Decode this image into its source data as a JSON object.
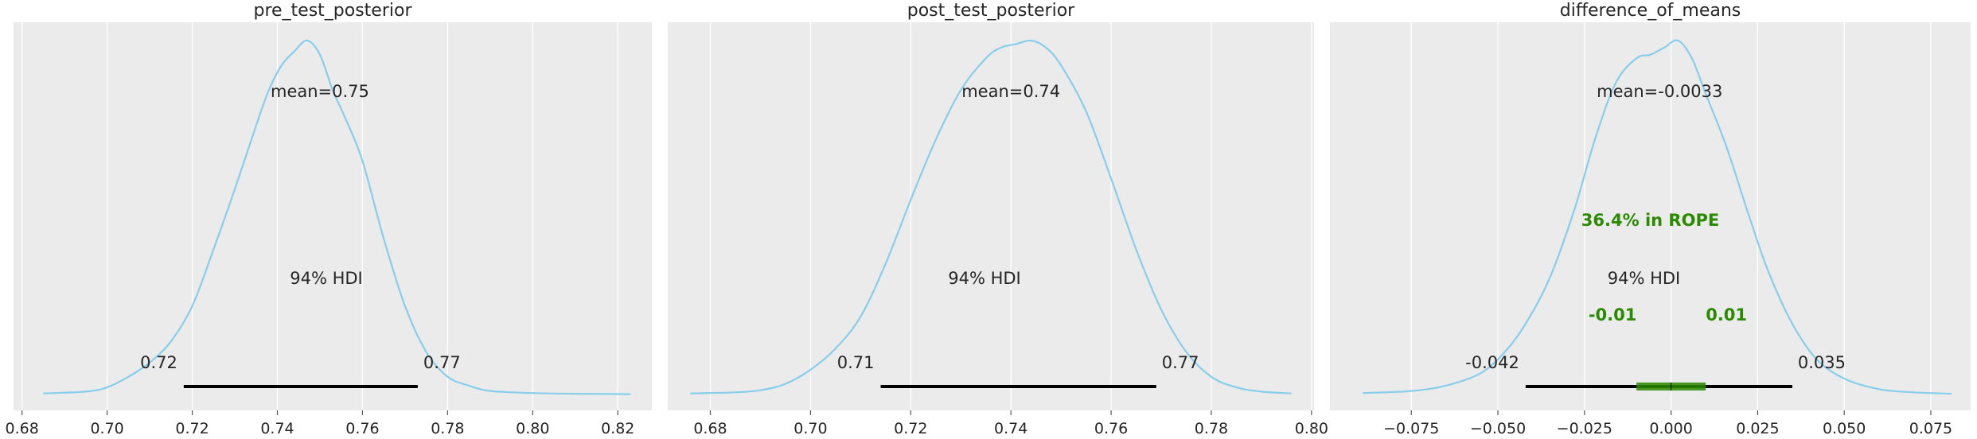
{
  "colors": {
    "background": "#ffffff",
    "panel": "#ebebeb",
    "grid": "#ffffff",
    "kde": "#87ceeb",
    "hdi": "#000000",
    "rope": "#2a8a00",
    "rope_text": "#2a8a00"
  },
  "chart_data": [
    {
      "type": "area",
      "title": "pre_test_posterior",
      "xlim": [
        0.678,
        0.828
      ],
      "ticks": [
        0.68,
        0.7,
        0.72,
        0.74,
        0.76,
        0.78,
        0.8,
        0.82
      ],
      "tick_labels": [
        "0.68",
        "0.70",
        "0.72",
        "0.74",
        "0.76",
        "0.78",
        "0.80",
        "0.82"
      ],
      "kde": {
        "x": [
          0.685,
          0.695,
          0.7,
          0.705,
          0.71,
          0.715,
          0.72,
          0.725,
          0.73,
          0.735,
          0.738,
          0.741,
          0.744,
          0.747,
          0.75,
          0.753,
          0.756,
          0.76,
          0.765,
          0.77,
          0.775,
          0.78,
          0.785,
          0.79,
          0.8,
          0.81,
          0.823
        ],
        "density": [
          0.003,
          0.008,
          0.02,
          0.05,
          0.09,
          0.15,
          0.25,
          0.41,
          0.58,
          0.76,
          0.86,
          0.93,
          0.97,
          1.0,
          0.96,
          0.86,
          0.78,
          0.66,
          0.44,
          0.25,
          0.12,
          0.05,
          0.025,
          0.01,
          0.004,
          0.002,
          0.001
        ]
      },
      "mean_label": "mean=0.75",
      "mean": 0.75,
      "hdi_label": "94% HDI",
      "hdi": [
        0.718,
        0.773
      ],
      "hdi_low_label": "0.72",
      "hdi_high_label": "0.77"
    },
    {
      "type": "area",
      "title": "post_test_posterior",
      "xlim": [
        0.6715,
        0.8005
      ],
      "ticks": [
        0.68,
        0.7,
        0.72,
        0.74,
        0.76,
        0.78,
        0.8
      ],
      "tick_labels": [
        "0.68",
        "0.70",
        "0.72",
        "0.74",
        "0.76",
        "0.78",
        "0.80"
      ],
      "kde": {
        "x": [
          0.676,
          0.685,
          0.69,
          0.695,
          0.7,
          0.705,
          0.71,
          0.715,
          0.72,
          0.725,
          0.73,
          0.735,
          0.738,
          0.741,
          0.744,
          0.747,
          0.75,
          0.755,
          0.76,
          0.765,
          0.77,
          0.775,
          0.78,
          0.785,
          0.79,
          0.796
        ],
        "density": [
          0.003,
          0.006,
          0.012,
          0.03,
          0.07,
          0.13,
          0.22,
          0.37,
          0.55,
          0.72,
          0.86,
          0.95,
          0.98,
          0.99,
          1.0,
          0.98,
          0.93,
          0.8,
          0.61,
          0.41,
          0.24,
          0.12,
          0.05,
          0.02,
          0.008,
          0.003
        ]
      },
      "mean_label": "mean=0.74",
      "mean": 0.74,
      "hdi_label": "94% HDI",
      "hdi": [
        0.714,
        0.769
      ],
      "hdi_low_label": "0.71",
      "hdi_high_label": "0.77"
    },
    {
      "type": "area",
      "title": "difference_of_means",
      "xlim": [
        -0.0985,
        0.0865
      ],
      "ticks": [
        -0.075,
        -0.05,
        -0.025,
        0.0,
        0.025,
        0.05,
        0.075
      ],
      "tick_labels": [
        "−0.075",
        "−0.050",
        "−0.025",
        "0.000",
        "0.025",
        "0.050",
        "0.075"
      ],
      "kde": {
        "x": [
          -0.089,
          -0.075,
          -0.065,
          -0.055,
          -0.048,
          -0.042,
          -0.035,
          -0.028,
          -0.022,
          -0.016,
          -0.01,
          -0.006,
          -0.002,
          0.002,
          0.006,
          0.01,
          0.016,
          0.022,
          0.028,
          0.035,
          0.042,
          0.05,
          0.06,
          0.07,
          0.081
        ],
        "density": [
          0.004,
          0.01,
          0.025,
          0.06,
          0.12,
          0.2,
          0.33,
          0.52,
          0.72,
          0.88,
          0.95,
          0.96,
          0.98,
          1.0,
          0.95,
          0.85,
          0.7,
          0.52,
          0.35,
          0.2,
          0.1,
          0.045,
          0.015,
          0.006,
          0.002
        ]
      },
      "mean_label": "mean=-0.0033",
      "mean": -0.0033,
      "hdi_label": "94% HDI",
      "hdi": [
        -0.042,
        0.035
      ],
      "hdi_low_label": "-0.042",
      "hdi_high_label": "0.035",
      "rope": [
        -0.01,
        0.01
      ],
      "rope_label": "36.4% in ROPE",
      "rope_low_label": "-0.01",
      "rope_high_label": "0.01"
    }
  ]
}
